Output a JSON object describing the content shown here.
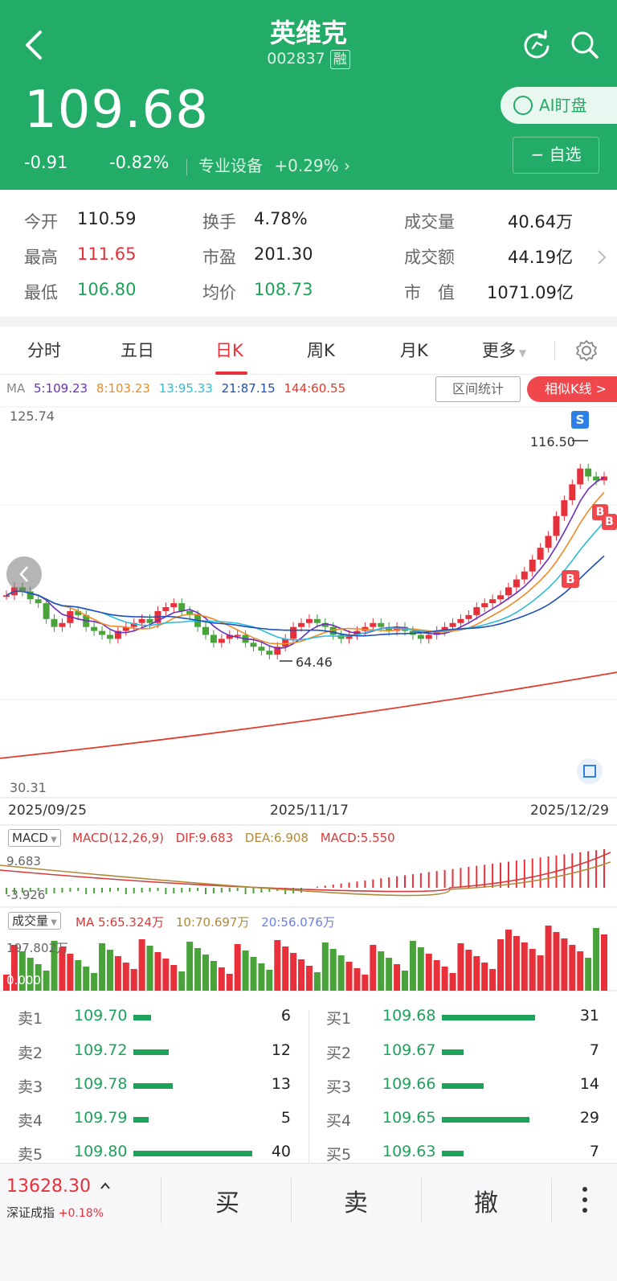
{
  "header": {
    "title": "英维克",
    "code": "002837",
    "margin_badge": "融",
    "price": "109.68",
    "change": "-0.91",
    "change_pct": "-0.82%",
    "sector": "专业设备",
    "sector_change": "+0.29%",
    "ai_button": "AI盯盘",
    "watch_button": "− 自选",
    "colors": {
      "bg": "#22ac67"
    }
  },
  "quote": {
    "open_label": "今开",
    "open": "110.59",
    "high_label": "最高",
    "high": "111.65",
    "low_label": "最低",
    "low": "106.80",
    "turnover_label": "换手",
    "turnover": "4.78%",
    "pe_label": "市盈",
    "pe": "201.30",
    "avg_label": "均价",
    "avg": "108.73",
    "volume_label": "成交量",
    "volume": "40.64万",
    "amount_label": "成交额",
    "amount": "44.19亿",
    "mcap_label": "市　值",
    "mcap": "1071.09亿"
  },
  "tabs": [
    "分时",
    "五日",
    "日K",
    "周K",
    "月K",
    "更多"
  ],
  "active_tab": "日K",
  "kline": {
    "ma_label": "MA",
    "ma5": "5:109.23",
    "ma8": "8:103.23",
    "ma13": "13:95.33",
    "ma21": "21:87.15",
    "ma144": "144:60.55",
    "range_button": "区间统计",
    "similar_button": "相似K线 >",
    "y_max": "125.74",
    "y_min": "30.31",
    "high_mark": "116.50",
    "low_mark": "64.46",
    "sell_badge": "S",
    "buy_badge": "B",
    "dates": [
      "2025/09/25",
      "2025/11/17",
      "2025/12/29"
    ]
  },
  "macd": {
    "selector": "MACD",
    "params": "MACD(12,26,9)",
    "dif": "DIF:9.683",
    "dea": "DEA:6.908",
    "macd": "MACD:5.550",
    "y_max": "9.683",
    "y_min": "-3.926"
  },
  "volume": {
    "selector": "成交量",
    "ma5": "MA 5:65.324万",
    "ma10": "10:70.697万",
    "ma20": "20:56.076万",
    "y_max": "197.802万",
    "y_min": "0.000"
  },
  "order_book": {
    "asks": [
      {
        "label": "卖1",
        "price": "109.70",
        "qty": "6",
        "fill": 0.15
      },
      {
        "label": "卖2",
        "price": "109.72",
        "qty": "12",
        "fill": 0.3
      },
      {
        "label": "卖3",
        "price": "109.78",
        "qty": "13",
        "fill": 0.33
      },
      {
        "label": "卖4",
        "price": "109.79",
        "qty": "5",
        "fill": 0.13
      },
      {
        "label": "卖5",
        "price": "109.80",
        "qty": "40",
        "fill": 1.0
      }
    ],
    "bids": [
      {
        "label": "买1",
        "price": "109.68",
        "qty": "31",
        "fill": 1.0
      },
      {
        "label": "买2",
        "price": "109.67",
        "qty": "7",
        "fill": 0.23
      },
      {
        "label": "买3",
        "price": "109.66",
        "qty": "14",
        "fill": 0.45
      },
      {
        "label": "买4",
        "price": "109.65",
        "qty": "29",
        "fill": 0.94
      },
      {
        "label": "买5",
        "price": "109.63",
        "qty": "7",
        "fill": 0.23
      }
    ]
  },
  "bottom": {
    "index_value": "13628.30",
    "index_name": "深证成指",
    "index_change": "+0.18%",
    "buy": "买",
    "sell": "卖",
    "cancel": "撤"
  }
}
